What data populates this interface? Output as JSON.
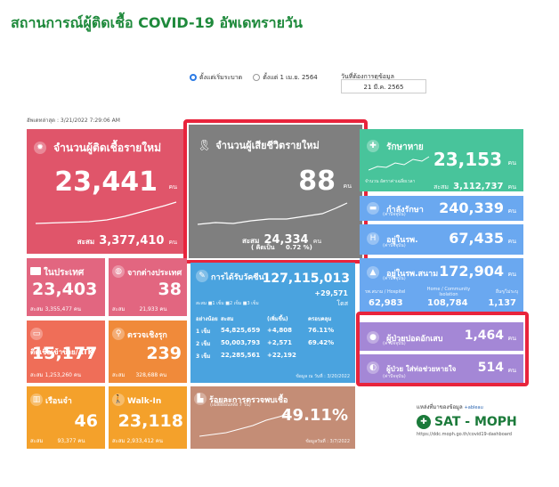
{
  "title": "สถานการณ์ผู้ติดเชื้อ COVID-19 อัพเดทรายวัน",
  "filters": {
    "option_since_outbreak": "ตั้งแต่เริ่มระบาด",
    "option_since_apr": "ตั้งแต่ 1 เม.ย. 2564",
    "date_label": "วันที่ต้องการดูข้อมูล",
    "date_value": "21 มี.ค. 2565"
  },
  "updated": "อัพเดทล่าสุด : 3/21/2022 7:29:06 AM",
  "unit": "คน",
  "new_cases": {
    "label": "จำนวนผู้ติดเชื้อรายใหม่",
    "value": "23,441",
    "cumulative_label": "สะสม",
    "cumulative": "3,377,410"
  },
  "new_deaths": {
    "label": "จำนวนผู้เสียชีวิตรายใหม่",
    "value": "88",
    "cumulative_label": "สะสม",
    "cumulative": "24,334",
    "rate_label": "( คิดเป็น",
    "rate": "0.72 %)"
  },
  "recovered": {
    "label": "รักษาหาย",
    "value": "23,153",
    "legend_a": "จำนวน",
    "legend_b": "อัตราค่าเฉลี่ยเวลา",
    "cumulative_label": "สะสม",
    "cumulative": "3,112,737"
  },
  "in_treatment": {
    "label": "กำลังรักษา",
    "sub": "(ค่าปัจจุบัน)",
    "value": "240,339"
  },
  "in_hospital": {
    "label": "อยู่ในรพ.",
    "sub": "(ค่าปัจจุบัน)",
    "value": "67,435"
  },
  "field_hospital": {
    "label": "อยู่ในรพ.สนาม",
    "sub": "(ค่าปัจจุบัน)",
    "value": "172,904",
    "col1_label": "รพ.สนาม / Hospitel",
    "col2_label": "Home / Community Isolation",
    "col3_label": "อื่นๆ/ไม่ระบุ",
    "col1": "62,983",
    "col2": "108,784",
    "col3": "1,137"
  },
  "severe_lung": {
    "label": "ผู้ป่วยปอดอักเสบ",
    "sub": "(ค่าปัจจุบัน)",
    "value": "1,464"
  },
  "ventilator": {
    "label": "ผู้ป่วย ใส่ท่อช่วยหายใจ",
    "sub": "(ค่าปัจจุบัน)",
    "value": "514"
  },
  "domestic": {
    "label": "ในประเทศ",
    "value": "23,403",
    "cumulative_label": "สะสม",
    "cumulative": "3,355,477"
  },
  "imported": {
    "label": "จากต่างประเทศ",
    "value": "38",
    "cumulative_label": "สะสม",
    "cumulative": "21,933"
  },
  "atk": {
    "label": "ติดเชื้อเข้าข่าย/ATK",
    "value": "15,177",
    "cumulative_label": "สะสม",
    "cumulative": "1,253,260"
  },
  "active_search": {
    "label": "ตรวจเชิงรุก",
    "value": "239",
    "cumulative_label": "สะสม",
    "cumulative": "328,688"
  },
  "prison": {
    "label": "เรือนจำ",
    "value": "46",
    "cumulative_label": "สะสม",
    "cumulative": "93,377"
  },
  "walkin": {
    "label": "Walk-In",
    "value": "23,118",
    "cumulative_label": "สะสม",
    "cumulative": "2,933,412"
  },
  "vaccine": {
    "label": "การได้รับวัคซีน",
    "total": "127,115,013",
    "increase": "+29,571",
    "dose_unit": "โดส",
    "legend_label": "สะสม",
    "legend": [
      "1 เข็ม",
      "2 เข็ม",
      "3 เข็ม"
    ],
    "header": [
      "อย่างน้อย",
      "สะสม",
      "(เพิ่มขึ้น)",
      "ครอบคลุม"
    ],
    "rows": [
      {
        "dose": "1 เข็ม",
        "total": "54,825,659",
        "increase": "+4,808",
        "coverage": "76.11%"
      },
      {
        "dose": "2 เข็ม",
        "total": "50,003,793",
        "increase": "+2,571",
        "coverage": "69.42%"
      },
      {
        "dose": "3 เข็ม",
        "total": "22,285,561",
        "increase": "+22,192",
        "coverage": ""
      }
    ],
    "date_note": "ข้อมูล ณ วันที่ : 3/20/2022"
  },
  "test_positive": {
    "label": "ร้อยละการตรวจพบเชื้อ",
    "sub": "(เฉลี่ยย้อนหลัง 7 วัน)",
    "value": "49.11%",
    "date_note": "ข้อมูลวันที่ : 3/7/2022"
  },
  "source": {
    "title": "แหล่งที่มาของข้อมูล",
    "tableau": "+ableau",
    "name": "SAT - MOPH",
    "url": "https://ddc.moph.go.th/covid19-dashboard"
  }
}
